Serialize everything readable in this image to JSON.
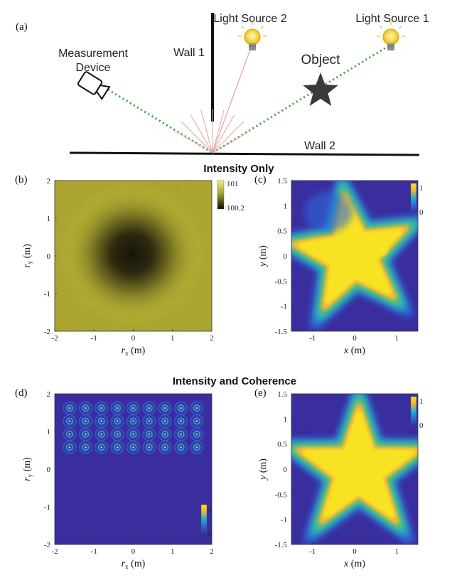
{
  "panel_a": {
    "label": "(a)",
    "light_source_2": "Light Source 2",
    "light_source_1": "Light Source 1",
    "wall_1": "Wall 1",
    "wall_2": "Wall 2",
    "measurement_device": [
      "Measurement",
      "Device"
    ],
    "object": "Object"
  },
  "section_titles": {
    "top": "Intensity Only",
    "bottom": "Intensity and Coherence"
  },
  "colors": {
    "yellow_field": "#c9c33a",
    "dark_center": "#161408",
    "parula_dark": "#3a2d9e",
    "parula_blue": "#2f69d9",
    "parula_cyan": "#1fb3c7",
    "parula_green": "#6cc45f",
    "parula_orange": "#f3b437",
    "parula_yellow": "#f8e321",
    "ray_green": "#3aa53a",
    "ray_pink": "#e7a0a6"
  },
  "chart_data": [
    {
      "panel": "(b)",
      "type": "heatmap",
      "xlabel_base": "r",
      "xlabel_sub": "x",
      "xlabel_unit": " (m)",
      "ylabel_base": "r",
      "ylabel_sub": "y",
      "ylabel_unit": " (m)",
      "xlim": [
        -2,
        2
      ],
      "ylim": [
        -2,
        2
      ],
      "xticks": [
        "-2",
        "-1",
        "0",
        "1",
        "2"
      ],
      "yticks": [
        "-2",
        "-1",
        "0",
        "1",
        "2"
      ],
      "colorbar": {
        "max": "101",
        "min": "100.2"
      }
    },
    {
      "panel": "(c)",
      "type": "heatmap",
      "xlabel": "x (m)",
      "ylabel": "y (m)",
      "xlim": [
        -1.5,
        1.5
      ],
      "ylim": [
        -1.5,
        1.5
      ],
      "xticks": [
        "-1",
        "0",
        "1"
      ],
      "yticks": [
        "-1.5",
        "-1",
        "-0.5",
        "0",
        "0.5",
        "1",
        "1.5"
      ],
      "colorbar": {
        "max": "1",
        "min": "0"
      }
    },
    {
      "panel": "(d)",
      "type": "heatmap",
      "xlabel_base": "r",
      "xlabel_sub": "x",
      "xlabel_unit": " (m)",
      "ylabel_base": "r",
      "ylabel_sub": "y",
      "ylabel_unit": " (m)",
      "xlim": [
        -2,
        2
      ],
      "ylim": [
        -2,
        2
      ],
      "xticks": [
        "-2",
        "-1",
        "0",
        "1",
        "2"
      ],
      "yticks": [
        "-2",
        "-1",
        "0",
        "1",
        "2"
      ],
      "grid_rows": 4,
      "grid_cols": 9,
      "colorbar": {
        "max": "1",
        "min": "0"
      }
    },
    {
      "panel": "(e)",
      "type": "heatmap",
      "xlabel": "x (m)",
      "ylabel": "y (m)",
      "xlim": [
        -1.5,
        1.5
      ],
      "ylim": [
        -1.5,
        1.5
      ],
      "xticks": [
        "-1",
        "0",
        "1"
      ],
      "yticks": [
        "-1.5",
        "-1",
        "-0.5",
        "0",
        "0.5",
        "1",
        "1.5"
      ],
      "colorbar": {
        "max": "1",
        "min": "0"
      }
    }
  ]
}
